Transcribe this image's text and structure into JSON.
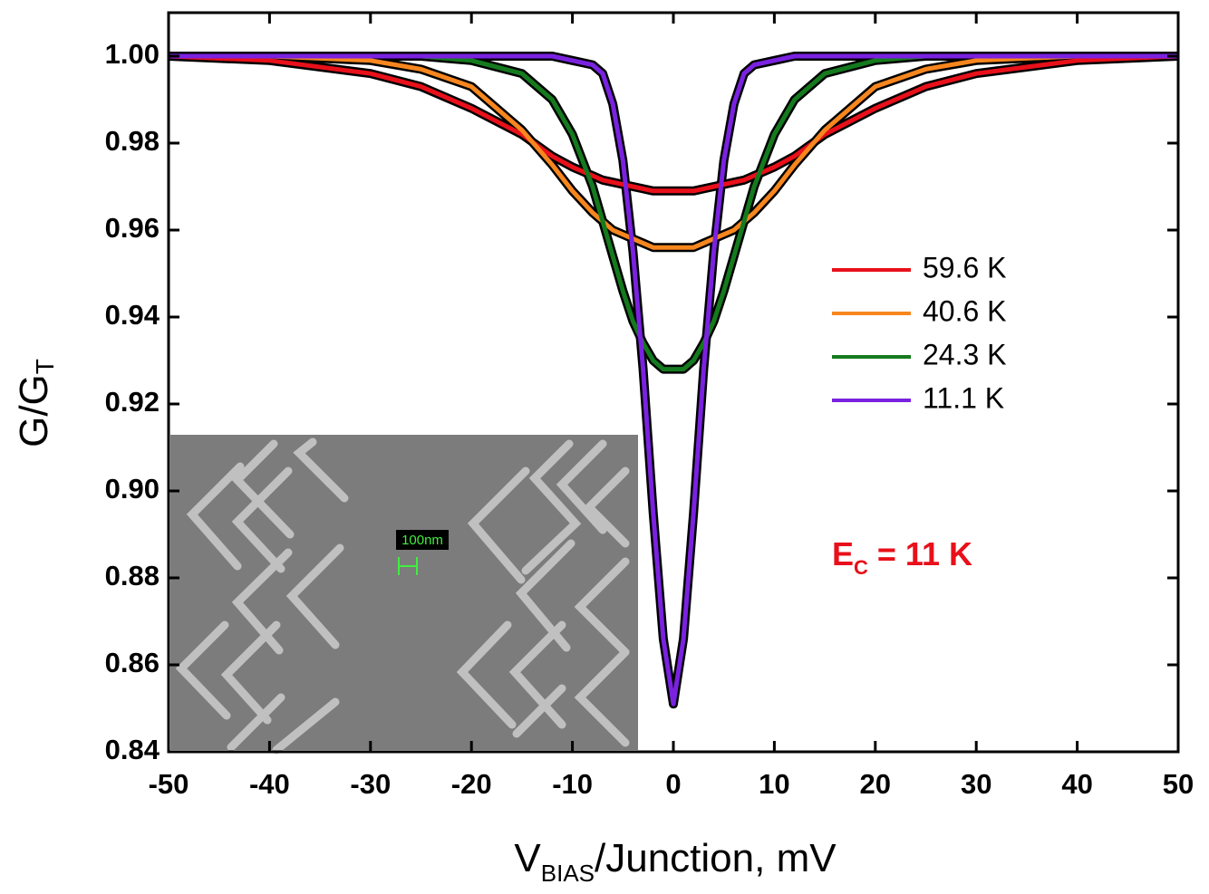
{
  "chart_data": {
    "type": "line",
    "ylabel": {
      "text": "G/G",
      "sub": "T"
    },
    "xlabel": {
      "text": "V",
      "sub": "BIAS",
      "rest": "/Junction, mV"
    },
    "x": [
      -50,
      -40,
      -30,
      -25,
      -20,
      -15,
      -12,
      -10,
      -8,
      -7,
      -6,
      -5,
      -4,
      -3,
      -2,
      -1,
      0,
      1,
      2,
      3,
      4,
      5,
      6,
      7,
      8,
      10,
      12,
      15,
      20,
      25,
      30,
      40,
      50
    ],
    "series": [
      {
        "name": "59.6 K",
        "color": "#e8101a",
        "values": [
          1.0,
          0.999,
          0.996,
          0.993,
          0.988,
          0.982,
          0.977,
          0.9745,
          0.9725,
          0.9715,
          0.971,
          0.9705,
          0.97,
          0.9695,
          0.969,
          0.969,
          0.969,
          0.969,
          0.969,
          0.9695,
          0.97,
          0.9705,
          0.971,
          0.9715,
          0.9725,
          0.9745,
          0.977,
          0.982,
          0.988,
          0.993,
          0.996,
          0.999,
          1.0
        ]
      },
      {
        "name": "40.6 K",
        "color": "#f7861e",
        "values": [
          1.0,
          1.0,
          0.999,
          0.997,
          0.993,
          0.983,
          0.975,
          0.969,
          0.964,
          0.962,
          0.96,
          0.959,
          0.958,
          0.957,
          0.956,
          0.956,
          0.956,
          0.956,
          0.956,
          0.957,
          0.958,
          0.959,
          0.96,
          0.962,
          0.964,
          0.969,
          0.975,
          0.983,
          0.993,
          0.997,
          0.999,
          1.0,
          1.0
        ]
      },
      {
        "name": "24.3 K",
        "color": "#157a1e",
        "values": [
          1.0,
          1.0,
          1.0,
          1.0,
          0.999,
          0.996,
          0.99,
          0.982,
          0.97,
          0.962,
          0.954,
          0.946,
          0.939,
          0.934,
          0.93,
          0.928,
          0.928,
          0.928,
          0.93,
          0.934,
          0.939,
          0.946,
          0.954,
          0.962,
          0.97,
          0.982,
          0.99,
          0.996,
          0.999,
          1.0,
          1.0,
          1.0,
          1.0
        ]
      },
      {
        "name": "11.1 K",
        "color": "#7a22e0",
        "values": [
          1.0,
          1.0,
          1.0,
          1.0,
          1.0,
          1.0,
          1.0,
          0.999,
          0.998,
          0.996,
          0.989,
          0.976,
          0.955,
          0.928,
          0.895,
          0.866,
          0.851,
          0.866,
          0.895,
          0.928,
          0.955,
          0.976,
          0.989,
          0.996,
          0.998,
          0.999,
          1.0,
          1.0,
          1.0,
          1.0,
          1.0,
          1.0,
          1.0
        ]
      }
    ],
    "xlim": [
      -50,
      50
    ],
    "xticks": [
      -50,
      -40,
      -30,
      -20,
      -10,
      0,
      10,
      20,
      30,
      40,
      50
    ],
    "ylim": [
      0.84,
      1.01
    ],
    "yticks": [
      0.84,
      0.86,
      0.88,
      {
        "value": 0.9,
        "label": "0.90"
      },
      0.92,
      0.94,
      0.96,
      0.98,
      {
        "value": 1,
        "label": "1.00"
      }
    ],
    "annotation": {
      "text": "E",
      "sub": "C",
      "rest": " = 11 K"
    },
    "inset_scale_label": "100nm"
  }
}
